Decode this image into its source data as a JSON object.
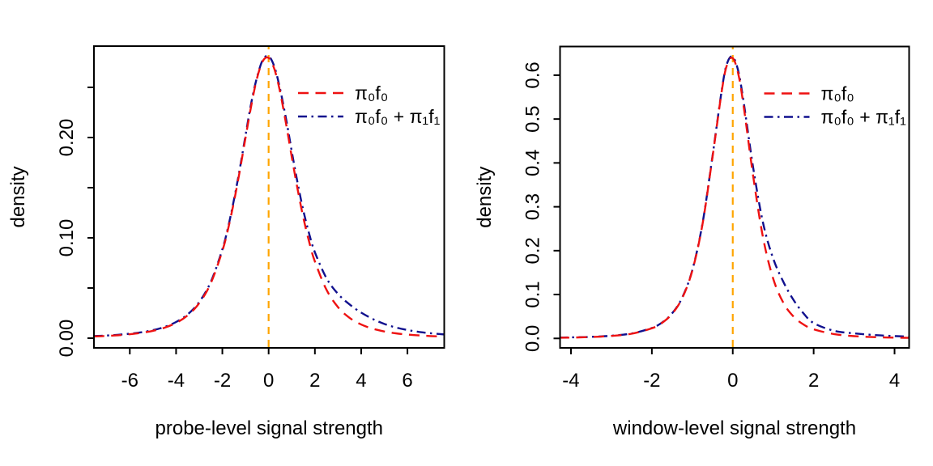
{
  "figure": {
    "background": "#ffffff",
    "text_color": "#000000",
    "axis_color": "#000000"
  },
  "chart_data": [
    {
      "type": "line",
      "xlabel": "probe-level signal strength",
      "ylabel": "density",
      "x_range": [
        -7.55,
        7.59
      ],
      "y_range": [
        -0.0097,
        0.2911
      ],
      "grid": false,
      "x_ticks": {
        "values": [
          -6,
          -4,
          -2,
          0,
          2,
          4,
          6
        ],
        "labels": [
          "-6",
          "-4",
          "-2",
          "0",
          "2",
          "4",
          "6"
        ]
      },
      "y_ticks": {
        "values": [
          0,
          0.05,
          0.1,
          0.15,
          0.2,
          0.25
        ],
        "labels": [
          "0.00",
          "",
          "0.10",
          "",
          "0.20",
          ""
        ]
      },
      "vline": {
        "x": 0,
        "color": "#ffa500",
        "style": "vline"
      },
      "legend": {
        "position": "upper-right-inside",
        "items": [
          {
            "id": "pi0f0",
            "label": "π₀f₀",
            "color": "#ee1111",
            "style": "dashed"
          },
          {
            "id": "mixture",
            "label": "π₀f₀ + π₁f₁",
            "color": "#10108e",
            "style": "dotdash"
          }
        ]
      },
      "series": [
        {
          "id": "pi0f0",
          "name": "π₀f₀",
          "color": "#ee1111",
          "style": "dashed",
          "points": [
            [
              -7.56,
              0.0017
            ],
            [
              -7,
              0.0022
            ],
            [
              -6.5,
              0.0029
            ],
            [
              -6,
              0.0039
            ],
            [
              -5.5,
              0.0053
            ],
            [
              -5,
              0.0073
            ],
            [
              -4.5,
              0.0104
            ],
            [
              -4,
              0.0152
            ],
            [
              -3.5,
              0.0227
            ],
            [
              -3,
              0.0349
            ],
            [
              -2.5,
              0.0548
            ],
            [
              -2,
              0.0869
            ],
            [
              -1.75,
              0.1091
            ],
            [
              -1.5,
              0.1357
            ],
            [
              -1.25,
              0.1664
            ],
            [
              -1,
              0.1996
            ],
            [
              -0.75,
              0.232
            ],
            [
              -0.5,
              0.2592
            ],
            [
              -0.25,
              0.2762
            ],
            [
              0,
              0.2794
            ],
            [
              0.25,
              0.2682
            ],
            [
              0.5,
              0.2449
            ],
            [
              0.75,
              0.2142
            ],
            [
              1,
              0.1808
            ],
            [
              1.25,
              0.1488
            ],
            [
              1.5,
              0.1202
            ],
            [
              1.75,
              0.0961
            ],
            [
              2,
              0.0764
            ],
            [
              2.5,
              0.0483
            ],
            [
              3,
              0.0309
            ],
            [
              3.5,
              0.0202
            ],
            [
              4,
              0.0136
            ],
            [
              4.5,
              0.0094
            ],
            [
              5,
              0.0067
            ],
            [
              5.5,
              0.0048
            ],
            [
              6,
              0.0036
            ],
            [
              6.5,
              0.0027
            ],
            [
              7,
              0.0021
            ],
            [
              7.6,
              0.0015
            ]
          ]
        },
        {
          "id": "mixture",
          "name": "π₀f₀ + π₁f₁",
          "color": "#10108e",
          "style": "dotdash",
          "points": [
            [
              -7.56,
              0.0021
            ],
            [
              -7,
              0.0026
            ],
            [
              -6.5,
              0.0034
            ],
            [
              -6,
              0.0044
            ],
            [
              -5.5,
              0.0059
            ],
            [
              -5,
              0.008
            ],
            [
              -4.5,
              0.0112
            ],
            [
              -4,
              0.0161
            ],
            [
              -3.5,
              0.0237
            ],
            [
              -3,
              0.036
            ],
            [
              -2.5,
              0.0561
            ],
            [
              -2,
              0.0884
            ],
            [
              -1.75,
              0.1108
            ],
            [
              -1.5,
              0.1376
            ],
            [
              -1.25,
              0.1684
            ],
            [
              -1,
              0.2018
            ],
            [
              -0.75,
              0.2347
            ],
            [
              -0.5,
              0.2602
            ],
            [
              -0.25,
              0.2775
            ],
            [
              0,
              0.281
            ],
            [
              0.25,
              0.2705
            ],
            [
              0.5,
              0.2478
            ],
            [
              0.75,
              0.219
            ],
            [
              1,
              0.1863
            ],
            [
              1.25,
              0.155
            ],
            [
              1.5,
              0.1273
            ],
            [
              1.75,
              0.1042
            ],
            [
              2,
              0.0856
            ],
            [
              2.5,
              0.0598
            ],
            [
              3,
              0.0441
            ],
            [
              3.5,
              0.0336
            ],
            [
              4,
              0.0255
            ],
            [
              4.5,
              0.0191
            ],
            [
              5,
              0.0142
            ],
            [
              5.5,
              0.0106
            ],
            [
              6,
              0.0081
            ],
            [
              6.5,
              0.0062
            ],
            [
              7,
              0.0049
            ],
            [
              7.6,
              0.0037
            ]
          ]
        }
      ]
    },
    {
      "type": "line",
      "xlabel": "window-level signal strength",
      "ylabel": "density",
      "x_range": [
        -4.27,
        4.36
      ],
      "y_range": [
        -0.0216,
        0.6653
      ],
      "grid": false,
      "x_ticks": {
        "values": [
          -4,
          -2,
          0,
          2,
          4
        ],
        "labels": [
          "-4",
          "-2",
          "0",
          "2",
          "4"
        ]
      },
      "y_ticks": {
        "values": [
          0,
          0.1,
          0.2,
          0.3,
          0.4,
          0.5,
          0.6
        ],
        "labels": [
          "0.0",
          "0.1",
          "0.2",
          "0.3",
          "0.4",
          "0.5",
          "0.6"
        ]
      },
      "vline": {
        "x": 0,
        "color": "#ffa500",
        "style": "vline"
      },
      "legend": {
        "position": "upper-right-inside",
        "items": [
          {
            "id": "pi0f0",
            "label": "π₀f₀",
            "color": "#ee1111",
            "style": "dashed"
          },
          {
            "id": "mixture",
            "label": "π₀f₀ + π₁f₁",
            "color": "#10108e",
            "style": "dotdash"
          }
        ]
      },
      "series": [
        {
          "id": "pi0f0",
          "name": "π₀f₀",
          "color": "#ee1111",
          "style": "dashed",
          "points": [
            [
              -4.3,
              0.0014
            ],
            [
              -4,
              0.0019
            ],
            [
              -3.5,
              0.0031
            ],
            [
              -3,
              0.0056
            ],
            [
              -2.5,
              0.0107
            ],
            [
              -2,
              0.023
            ],
            [
              -1.75,
              0.0353
            ],
            [
              -1.5,
              0.056
            ],
            [
              -1.25,
              0.0918
            ],
            [
              -1,
              0.1543
            ],
            [
              -0.75,
              0.2593
            ],
            [
              -0.5,
              0.4139
            ],
            [
              -0.25,
              0.5769
            ],
            [
              -0.125,
              0.6275
            ],
            [
              0,
              0.6387
            ],
            [
              0.125,
              0.6074
            ],
            [
              0.25,
              0.5422
            ],
            [
              0.5,
              0.3732
            ],
            [
              0.75,
              0.2294
            ],
            [
              1,
              0.1361
            ],
            [
              1.25,
              0.0813
            ],
            [
              1.5,
              0.0499
            ],
            [
              1.75,
              0.0317
            ],
            [
              2,
              0.0208
            ],
            [
              2.5,
              0.0099
            ],
            [
              3,
              0.0052
            ],
            [
              3.5,
              0.0029
            ],
            [
              4,
              0.0018
            ],
            [
              4.36,
              0.0013
            ]
          ]
        },
        {
          "id": "mixture",
          "name": "π₀f₀ + π₁f₁",
          "color": "#10108e",
          "style": "dotdash",
          "points": [
            [
              -4.3,
              0.0017
            ],
            [
              -4,
              0.0023
            ],
            [
              -3.5,
              0.0035
            ],
            [
              -3,
              0.0061
            ],
            [
              -2.5,
              0.0113
            ],
            [
              -2,
              0.0238
            ],
            [
              -1.75,
              0.0362
            ],
            [
              -1.5,
              0.057
            ],
            [
              -1.25,
              0.0929
            ],
            [
              -1,
              0.1556
            ],
            [
              -0.75,
              0.2609
            ],
            [
              -0.5,
              0.4158
            ],
            [
              -0.25,
              0.5793
            ],
            [
              -0.125,
              0.6307
            ],
            [
              0,
              0.642
            ],
            [
              0.125,
              0.6135
            ],
            [
              0.25,
              0.551
            ],
            [
              0.5,
              0.392
            ],
            [
              0.75,
              0.263
            ],
            [
              1,
              0.182
            ],
            [
              1.25,
              0.129
            ],
            [
              1.5,
              0.088
            ],
            [
              1.75,
              0.057
            ],
            [
              2,
              0.035
            ],
            [
              2.5,
              0.0175
            ],
            [
              3,
              0.0115
            ],
            [
              3.5,
              0.0078
            ],
            [
              4,
              0.0053
            ],
            [
              4.36,
              0.0041
            ]
          ]
        }
      ]
    }
  ]
}
